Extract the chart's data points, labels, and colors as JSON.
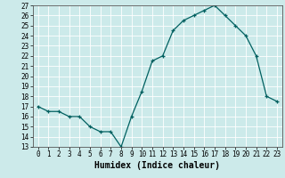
{
  "x": [
    0,
    1,
    2,
    3,
    4,
    5,
    6,
    7,
    8,
    9,
    10,
    11,
    12,
    13,
    14,
    15,
    16,
    17,
    18,
    19,
    20,
    21,
    22,
    23
  ],
  "y": [
    17.0,
    16.5,
    16.5,
    16.0,
    16.0,
    15.0,
    14.5,
    14.5,
    13.0,
    16.0,
    18.5,
    21.5,
    22.0,
    24.5,
    25.5,
    26.0,
    26.5,
    27.0,
    26.0,
    25.0,
    24.0,
    22.0,
    18.0,
    17.5
  ],
  "xlabel": "Humidex (Indice chaleur)",
  "ylim": [
    13,
    27
  ],
  "xlim": [
    -0.5,
    23.5
  ],
  "yticks": [
    13,
    14,
    15,
    16,
    17,
    18,
    19,
    20,
    21,
    22,
    23,
    24,
    25,
    26,
    27
  ],
  "xticks": [
    0,
    1,
    2,
    3,
    4,
    5,
    6,
    7,
    8,
    9,
    10,
    11,
    12,
    13,
    14,
    15,
    16,
    17,
    18,
    19,
    20,
    21,
    22,
    23
  ],
  "line_color": "#006060",
  "marker": "+",
  "bg_color": "#cceaea",
  "grid_color": "#ffffff",
  "tick_fontsize": 5.5,
  "xlabel_fontsize": 7.0
}
